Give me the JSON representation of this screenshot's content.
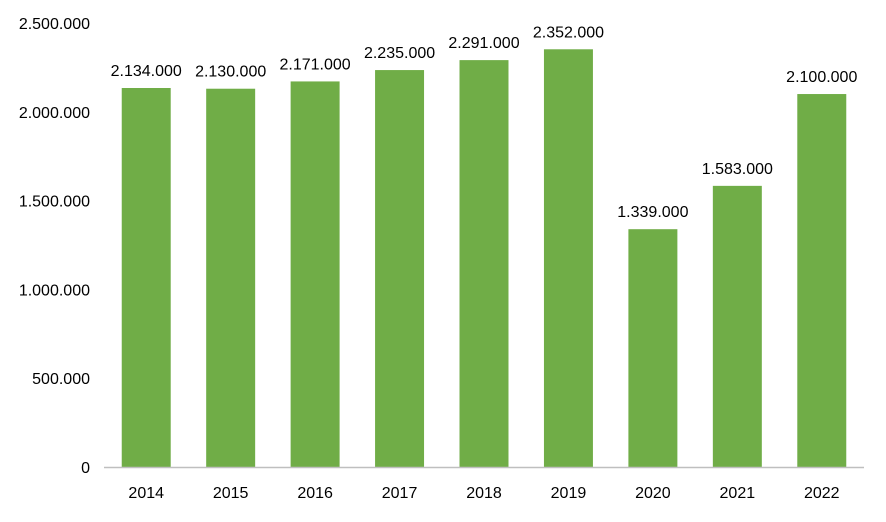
{
  "chart_data": {
    "type": "bar",
    "title": "",
    "xlabel": "",
    "ylabel": "",
    "categories": [
      "2014",
      "2015",
      "2016",
      "2017",
      "2018",
      "2019",
      "2020",
      "2021",
      "2022"
    ],
    "values": [
      2134000,
      2130000,
      2171000,
      2235000,
      2291000,
      2352000,
      1339000,
      1583000,
      2100000
    ],
    "data_labels": [
      "2.134.000",
      "2.130.000",
      "2.171.000",
      "2.235.000",
      "2.291.000",
      "2.352.000",
      "1.339.000",
      "1.583.000",
      "2.100.000"
    ],
    "ylim": [
      0,
      2500000
    ],
    "y_ticks": [
      0,
      500000,
      1000000,
      1500000,
      2000000,
      2500000
    ],
    "y_tick_labels": [
      "0",
      "500.000",
      "1.000.000",
      "1.500.000",
      "2.000.000",
      "2.500.000"
    ],
    "grid": false,
    "legend": "none",
    "bar_color": "#70AD47",
    "axis_color": "#BFBFBF"
  }
}
